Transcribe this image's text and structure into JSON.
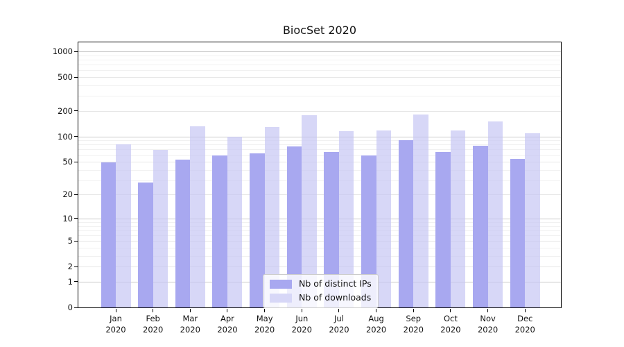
{
  "chart_data": {
    "type": "bar",
    "title": "BiocSet 2020",
    "year": "2020",
    "months": [
      "Jan",
      "Feb",
      "Mar",
      "Apr",
      "May",
      "Jun",
      "Jul",
      "Aug",
      "Sep",
      "Oct",
      "Nov",
      "Dec"
    ],
    "series": [
      {
        "name": "Nb of distinct IPs",
        "color": "#a8a8f0",
        "fill": "rgba(168,168,240,1)",
        "values": [
          49,
          28,
          53,
          59,
          63,
          76,
          65,
          60,
          91,
          66,
          78,
          54
        ]
      },
      {
        "name": "Nb of downloads",
        "color": "#d7d7f7",
        "fill": "rgba(196,196,243,0.68)",
        "values": [
          80,
          69,
          133,
          99,
          130,
          177,
          115,
          118,
          182,
          118,
          150,
          110
        ]
      }
    ],
    "y_scale": "log10(1+v)",
    "y_ticks": [
      0,
      1,
      2,
      5,
      10,
      20,
      50,
      100,
      200,
      500,
      1000
    ],
    "y_axis_max": 1280,
    "grid": "on",
    "legend_position": "lower center inside plot"
  }
}
